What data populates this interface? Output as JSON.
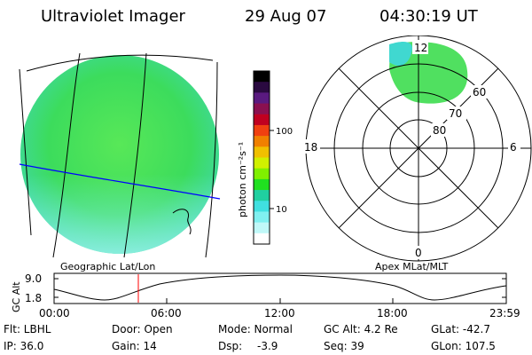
{
  "header": {
    "instrument": "Ultraviolet Imager",
    "date": "29 Aug 07",
    "time": "04:30:19 UT"
  },
  "colorbar": {
    "label": "photon cm⁻²s⁻¹",
    "ticks": [
      "100",
      "10"
    ],
    "colors": [
      "#000000",
      "#2a0a40",
      "#5a1a80",
      "#8a1050",
      "#c00020",
      "#f04010",
      "#f08000",
      "#f0c000",
      "#d0f000",
      "#80f000",
      "#20e020",
      "#20d0a0",
      "#40e0e0",
      "#80f0f0",
      "#c0f8f8",
      "#ffffff"
    ]
  },
  "polar": {
    "labels": [
      "12",
      "60",
      "70",
      "80",
      "18",
      "6",
      "0"
    ]
  },
  "timeline": {
    "ylabel": "GC Alt",
    "yticks": [
      "9.0",
      "1.8"
    ],
    "left_title": "Geographic Lat/Lon",
    "right_title": "Apex  MLat/MLT",
    "xticks": [
      "00:00",
      "06:00",
      "12:00",
      "18:00",
      "23:59"
    ],
    "cursor_time": "04:30"
  },
  "status": {
    "flt": "Flt: LBHL",
    "ip": "IP: 36.0",
    "door": "Door: Open",
    "gain": "Gain: 14",
    "mode": "Mode: Normal",
    "dsp_label": "Dsp:",
    "dsp_value": "-3.9",
    "gcalt": "GC Alt: 4.2 Re",
    "seq": "Seq: 39",
    "glat": "GLat: -42.7",
    "glon": "GLon: 107.5"
  },
  "style": {
    "image_green": "#40e040",
    "image_cyan": "#40e0d0",
    "grid_line": "#000000",
    "equator_line": "#0000ff",
    "cursor_color": "#ff0000"
  }
}
